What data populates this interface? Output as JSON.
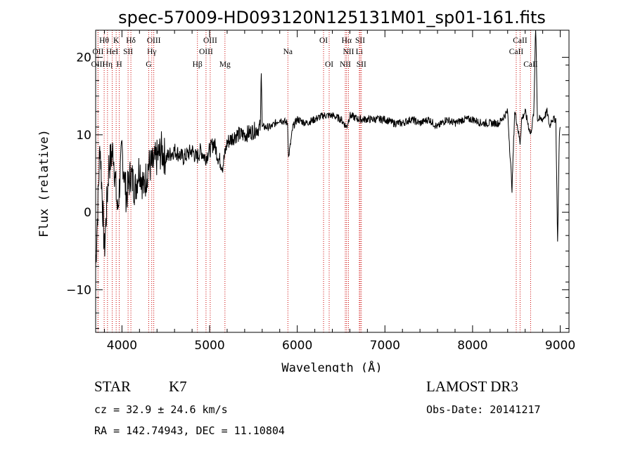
{
  "chart_data": {
    "type": "line",
    "title": "spec-57009-HD093120N125131M01_sp01-161.fits",
    "xlabel": "Wavelength (Å)",
    "ylabel": "Flux (relative)",
    "xlim": [
      3700,
      9100
    ],
    "ylim": [
      -15.5,
      23.5
    ],
    "xticks": [
      4000,
      5000,
      6000,
      7000,
      8000,
      9000
    ],
    "xtick_labels": [
      "4000",
      "5000",
      "6000",
      "7000",
      "8000",
      "9000"
    ],
    "yticks": [
      -10,
      0,
      10,
      20
    ],
    "ytick_labels": [
      "−10",
      "0",
      "10",
      "20"
    ],
    "series": [
      {
        "name": "spectrum",
        "x": [
          3700,
          3750,
          3800,
          3850,
          3900,
          3950,
          4000,
          4050,
          4100,
          4150,
          4200,
          4250,
          4300,
          4350,
          4400,
          4450,
          4500,
          4600,
          4700,
          4800,
          4850,
          4900,
          4950,
          5000,
          5050,
          5100,
          5150,
          5200,
          5300,
          5400,
          5500,
          5580,
          5590,
          5600,
          5700,
          5800,
          5890,
          5900,
          5950,
          6000,
          6100,
          6200,
          6300,
          6400,
          6500,
          6563,
          6600,
          6700,
          6800,
          6900,
          7000,
          7100,
          7200,
          7300,
          7400,
          7500,
          7600,
          7700,
          7800,
          7900,
          8000,
          8100,
          8200,
          8300,
          8400,
          8450,
          8480,
          8500,
          8542,
          8560,
          8600,
          8662,
          8700,
          8720,
          8740,
          8760,
          8800,
          8850,
          8880,
          8900,
          8950,
          8970,
          8990,
          9000
        ],
        "y": [
          -7,
          9,
          -5,
          6,
          8,
          0,
          8,
          2,
          5,
          3,
          6,
          3,
          6,
          6,
          7,
          8,
          7,
          8,
          7,
          8,
          7,
          8,
          7,
          8,
          9,
          7,
          6,
          9,
          10,
          10,
          10.5,
          11,
          19,
          11,
          11,
          12,
          11.5,
          7,
          11,
          12,
          11.5,
          12,
          12.5,
          12.5,
          12,
          11,
          12.5,
          12,
          12,
          12,
          12,
          11.5,
          11.5,
          12,
          11.5,
          12,
          11,
          12,
          11.5,
          12,
          12,
          11.5,
          11.5,
          11.5,
          13,
          3,
          13,
          12,
          9,
          12,
          13,
          10,
          13,
          25,
          12,
          12,
          12,
          13,
          11,
          12,
          12,
          -4,
          10,
          11
        ]
      }
    ],
    "lines": [
      {
        "label": "Hθ",
        "x": 3797,
        "row": 1
      },
      {
        "label": "OII",
        "x": 3727,
        "row": 2
      },
      {
        "label": "OIII",
        "x": 3727,
        "row": 3
      },
      {
        "label": "K",
        "x": 3934,
        "row": 1
      },
      {
        "label": "HeI",
        "x": 3889,
        "row": 2
      },
      {
        "label": "Hη",
        "x": 3835,
        "row": 3
      },
      {
        "label": "SII",
        "x": 4070,
        "row": 2
      },
      {
        "label": "H",
        "x": 3969,
        "row": 3
      },
      {
        "label": "Hδ",
        "x": 4102,
        "row": 1
      },
      {
        "label": "OIII",
        "x": 4363,
        "row": 1
      },
      {
        "label": "Hγ",
        "x": 4340,
        "row": 2
      },
      {
        "label": "G",
        "x": 4305,
        "row": 3
      },
      {
        "label": "OIII",
        "x": 5007,
        "row": 1
      },
      {
        "label": "OIII",
        "x": 4959,
        "row": 2
      },
      {
        "label": "Hβ",
        "x": 4861,
        "row": 3
      },
      {
        "label": "Mg",
        "x": 5175,
        "row": 3
      },
      {
        "label": "Na",
        "x": 5893,
        "row": 2
      },
      {
        "label": "OI",
        "x": 6300,
        "row": 1
      },
      {
        "label": "OI",
        "x": 6364,
        "row": 3
      },
      {
        "label": "Hα",
        "x": 6563,
        "row": 1
      },
      {
        "label": "SII",
        "x": 6717,
        "row": 1
      },
      {
        "label": "NII",
        "x": 6584,
        "row": 2
      },
      {
        "label": "Li",
        "x": 6708,
        "row": 2
      },
      {
        "label": "NII",
        "x": 6548,
        "row": 3
      },
      {
        "label": "SII",
        "x": 6731,
        "row": 3
      },
      {
        "label": "CaII",
        "x": 8542,
        "row": 1
      },
      {
        "label": "CaII",
        "x": 8498,
        "row": 2
      },
      {
        "label": "CaII",
        "x": 8662,
        "row": 3
      }
    ]
  },
  "info": {
    "class": "STAR",
    "subclass": "K7",
    "survey": "LAMOST DR3",
    "cz": "cz = 32.9 ± 24.6 km/s",
    "obs_date": "Obs-Date: 20141217",
    "radec": "RA = 142.74943, DEC =  11.10804"
  },
  "colors": {
    "spectrum": "#000000",
    "lines": "#cc0000",
    "axes": "#000000"
  }
}
